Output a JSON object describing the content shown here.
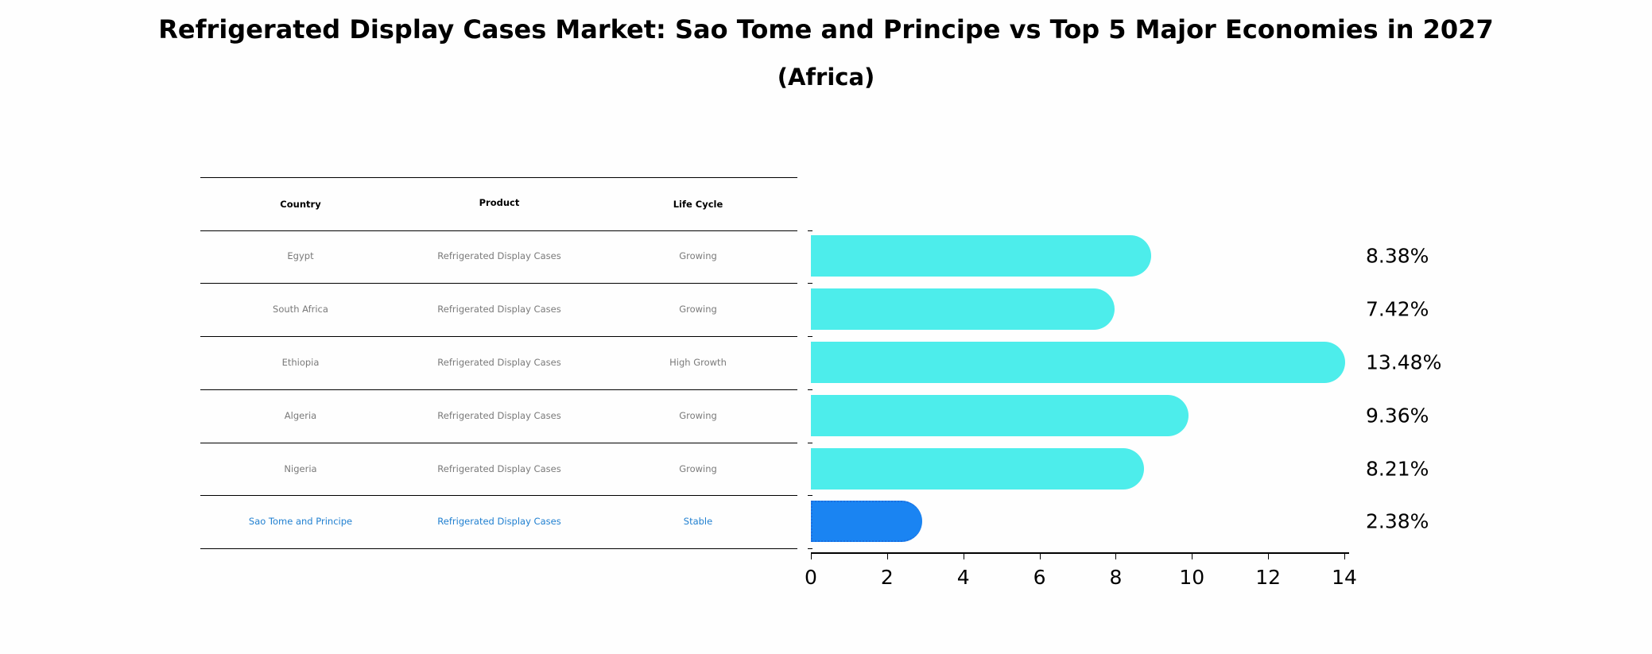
{
  "title": "Refrigerated Display Cases Market: Sao Tome and Principe vs Top 5 Major Economies in 2027",
  "subtitle": "(Africa)",
  "table": {
    "headers": [
      "Country",
      "Product",
      "Life Cycle"
    ],
    "rows": [
      {
        "country": "Egypt",
        "product": "Refrigerated Display Cases",
        "life_cycle": "Growing",
        "highlight": false
      },
      {
        "country": "South Africa",
        "product": "Refrigerated Display Cases",
        "life_cycle": "Growing",
        "highlight": false
      },
      {
        "country": "Ethiopia",
        "product": "Refrigerated Display Cases",
        "life_cycle": "High Growth",
        "highlight": false
      },
      {
        "country": "Algeria",
        "product": "Refrigerated Display Cases",
        "life_cycle": "Growing",
        "highlight": false
      },
      {
        "country": "Nigeria",
        "product": "Refrigerated Display Cases",
        "life_cycle": "Growing",
        "highlight": false
      },
      {
        "country": "Sao Tome and Principe",
        "product": "Refrigerated Display Cases",
        "life_cycle": "Stable",
        "highlight": true
      }
    ]
  },
  "colors": {
    "bar_default": "#4DEDEB",
    "bar_highlight": "#1A84F2",
    "highlight_text": "#1F7FD0",
    "muted_text": "#7A7A7A"
  },
  "chart_data": {
    "type": "bar",
    "orientation": "horizontal",
    "title": "Refrigerated Display Cases Market: Sao Tome and Principe vs Top 5 Major Economies in 2027",
    "subtitle": "(Africa)",
    "categories": [
      "Egypt",
      "South Africa",
      "Ethiopia",
      "Algeria",
      "Nigeria",
      "Sao Tome and Principe"
    ],
    "values": [
      8.38,
      7.42,
      13.48,
      9.36,
      8.21,
      2.38
    ],
    "value_labels": [
      "8.38%",
      "7.42%",
      "13.48%",
      "9.36%",
      "8.21%",
      "2.38%"
    ],
    "xlabel": "",
    "ylabel": "",
    "xlim": [
      0,
      14
    ],
    "xticks": [
      "0",
      "2",
      "4",
      "6",
      "8",
      "10",
      "12",
      "14"
    ],
    "grid": false,
    "legend": null,
    "highlight_category": "Sao Tome and Principe"
  }
}
